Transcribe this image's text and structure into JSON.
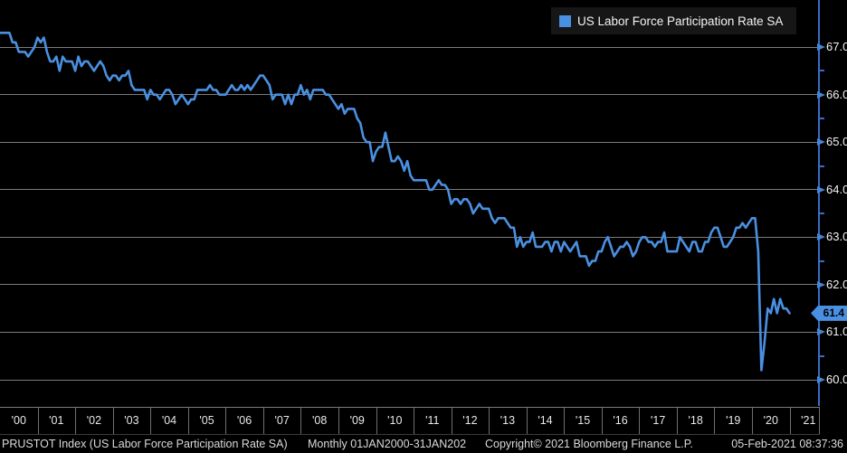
{
  "colors": {
    "background": "#000000",
    "line": "#4a90e2",
    "axis": "#3b6cc4",
    "tick_arrow": "#4585d6",
    "grid": "#7b7b7b",
    "badge_bg": "#4a90e2",
    "badge_text": "#000000",
    "legend_bg": "#161616",
    "text": "#f2f2f2"
  },
  "legend": {
    "swatch_icon": "blue-square",
    "label": "US Labor Force Participation Rate SA"
  },
  "y_axis": {
    "last_value_label": "61.4"
  },
  "status_bar": {
    "security": "PRUSTOT Index (US Labor Force Participation Rate SA)",
    "periodicity": "Monthly 01JAN2000-31JAN202",
    "copyright": "Copyright© 2021 Bloomberg Finance L.P.",
    "timestamp": "05-Feb-2021 08:37:36"
  },
  "chart_data": {
    "type": "line",
    "title": "US Labor Force Participation Rate SA",
    "frequency": "monthly",
    "x_start": "2000-01",
    "x_end": "2021-01",
    "xtick_labels": [
      "'00",
      "'01",
      "'02",
      "'03",
      "'04",
      "'05",
      "'06",
      "'07",
      "'08",
      "'09",
      "'10",
      "'11",
      "'12",
      "'13",
      "'14",
      "'15",
      "'16",
      "'17",
      "'18",
      "'19",
      "'20",
      "'21"
    ],
    "yticks": [
      67.0,
      66.0,
      65.0,
      64.0,
      63.0,
      62.0,
      61.0,
      60.0
    ],
    "ytick_labels": [
      "67.0",
      "66.0",
      "65.0",
      "64.0",
      "63.0",
      "62.0",
      "61.0",
      "60.0"
    ],
    "minor_yticks": [
      66.5,
      65.5,
      64.5,
      63.5,
      62.5,
      61.5,
      60.5
    ],
    "ylim_displayed": [
      59.4,
      68.0
    ],
    "grid": true,
    "legend_position": "top-right",
    "last_value": 61.4,
    "series": [
      {
        "name": "US Labor Force Participation Rate SA",
        "color": "#4a90e2",
        "values": [
          67.3,
          67.3,
          67.3,
          67.3,
          67.1,
          67.1,
          66.9,
          66.9,
          66.9,
          66.8,
          66.9,
          67.0,
          67.2,
          67.1,
          67.2,
          66.9,
          66.7,
          66.7,
          66.8,
          66.5,
          66.8,
          66.7,
          66.7,
          66.7,
          66.5,
          66.8,
          66.6,
          66.7,
          66.7,
          66.6,
          66.5,
          66.6,
          66.7,
          66.6,
          66.4,
          66.3,
          66.4,
          66.4,
          66.3,
          66.4,
          66.4,
          66.5,
          66.2,
          66.1,
          66.1,
          66.1,
          66.1,
          65.9,
          66.1,
          66.0,
          66.0,
          65.9,
          66.0,
          66.1,
          66.1,
          66.0,
          65.8,
          65.9,
          66.0,
          65.9,
          65.8,
          65.9,
          65.9,
          66.1,
          66.1,
          66.1,
          66.1,
          66.2,
          66.1,
          66.1,
          66.0,
          66.0,
          66.0,
          66.1,
          66.2,
          66.1,
          66.1,
          66.2,
          66.1,
          66.2,
          66.1,
          66.2,
          66.3,
          66.4,
          66.4,
          66.3,
          66.2,
          65.9,
          66.0,
          66.0,
          66.0,
          65.8,
          66.0,
          65.8,
          66.0,
          66.0,
          66.2,
          66.0,
          66.1,
          65.9,
          66.1,
          66.1,
          66.1,
          66.1,
          66.0,
          66.0,
          65.9,
          65.8,
          65.7,
          65.8,
          65.6,
          65.7,
          65.7,
          65.7,
          65.5,
          65.4,
          65.1,
          65.0,
          65.0,
          64.6,
          64.8,
          64.9,
          64.9,
          65.2,
          64.9,
          64.6,
          64.6,
          64.7,
          64.6,
          64.4,
          64.6,
          64.3,
          64.2,
          64.2,
          64.2,
          64.2,
          64.2,
          64.0,
          64.0,
          64.1,
          64.2,
          64.1,
          64.1,
          64.0,
          63.7,
          63.8,
          63.8,
          63.7,
          63.8,
          63.8,
          63.7,
          63.5,
          63.6,
          63.7,
          63.6,
          63.6,
          63.6,
          63.4,
          63.3,
          63.4,
          63.4,
          63.4,
          63.3,
          63.2,
          63.2,
          62.8,
          63.0,
          62.8,
          62.9,
          62.9,
          63.1,
          62.8,
          62.8,
          62.8,
          62.9,
          62.9,
          62.7,
          62.9,
          62.9,
          62.7,
          62.9,
          62.8,
          62.7,
          62.8,
          62.9,
          62.6,
          62.6,
          62.6,
          62.4,
          62.5,
          62.5,
          62.7,
          62.7,
          62.9,
          63.0,
          62.8,
          62.6,
          62.7,
          62.8,
          62.8,
          62.9,
          62.8,
          62.6,
          62.7,
          62.9,
          63.0,
          63.0,
          62.9,
          62.9,
          62.8,
          62.9,
          62.9,
          63.1,
          62.7,
          62.7,
          62.7,
          62.7,
          63.0,
          62.9,
          62.8,
          62.7,
          62.9,
          62.9,
          62.7,
          62.7,
          62.9,
          62.9,
          63.1,
          63.2,
          63.2,
          63.0,
          62.8,
          62.8,
          62.9,
          63.0,
          63.2,
          63.2,
          63.3,
          63.2,
          63.3,
          63.4,
          63.4,
          62.7,
          60.2,
          60.8,
          61.5,
          61.4,
          61.7,
          61.4,
          61.7,
          61.5,
          61.5,
          61.4
        ]
      }
    ]
  }
}
